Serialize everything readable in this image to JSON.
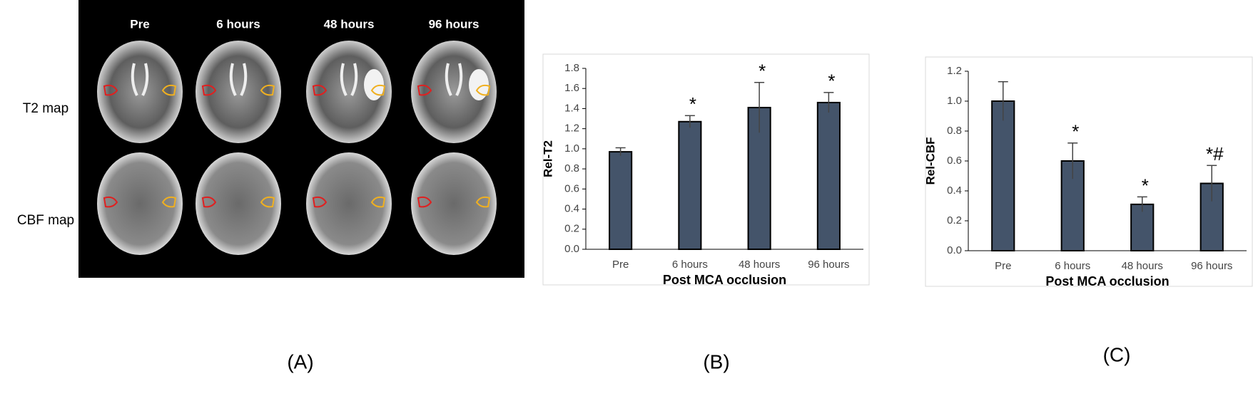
{
  "panel_a": {
    "columns": [
      "Pre",
      "6 hours",
      "48 hours",
      "96 hours"
    ],
    "rows": [
      "T2 map",
      "CBF map"
    ]
  },
  "panel_labels": [
    "(A)",
    "(B)",
    "(C)"
  ],
  "chart_data": [
    {
      "type": "bar",
      "x_label": "Post MCA occlusion",
      "y_label": "Rel-T2",
      "categories": [
        "Pre",
        "6 hours",
        "48 hours",
        "96 hours"
      ],
      "values": [
        0.97,
        1.27,
        1.41,
        1.46
      ],
      "errors": [
        0.04,
        0.06,
        0.25,
        0.1
      ],
      "value_annotations": [
        null,
        "*",
        "*",
        "*"
      ],
      "color": "#44546a",
      "ylim": [
        0,
        1.8
      ],
      "yticks": [
        {
          "value": 0,
          "label": "0.0"
        },
        0.2,
        0.4,
        0.6,
        0.8,
        {
          "value": 1,
          "label": "1.0"
        },
        1.2,
        1.4,
        1.6,
        1.8
      ]
    },
    {
      "type": "bar",
      "x_label": "Post MCA occlusion",
      "y_label": "Rel-CBF",
      "categories": [
        "Pre",
        "6 hours",
        "48 hours",
        "96 hours"
      ],
      "values": [
        1.0,
        0.6,
        0.31,
        0.45
      ],
      "errors": [
        0.13,
        0.12,
        0.05,
        0.12
      ],
      "value_annotations": [
        null,
        "*",
        "*",
        "*#"
      ],
      "color": "#44546a",
      "ylim": [
        0,
        1.2
      ],
      "yticks": [
        {
          "value": 0,
          "label": "0.0"
        },
        0.2,
        0.4,
        0.6,
        0.8,
        {
          "value": 1,
          "label": "1.0"
        },
        1.2
      ]
    }
  ]
}
